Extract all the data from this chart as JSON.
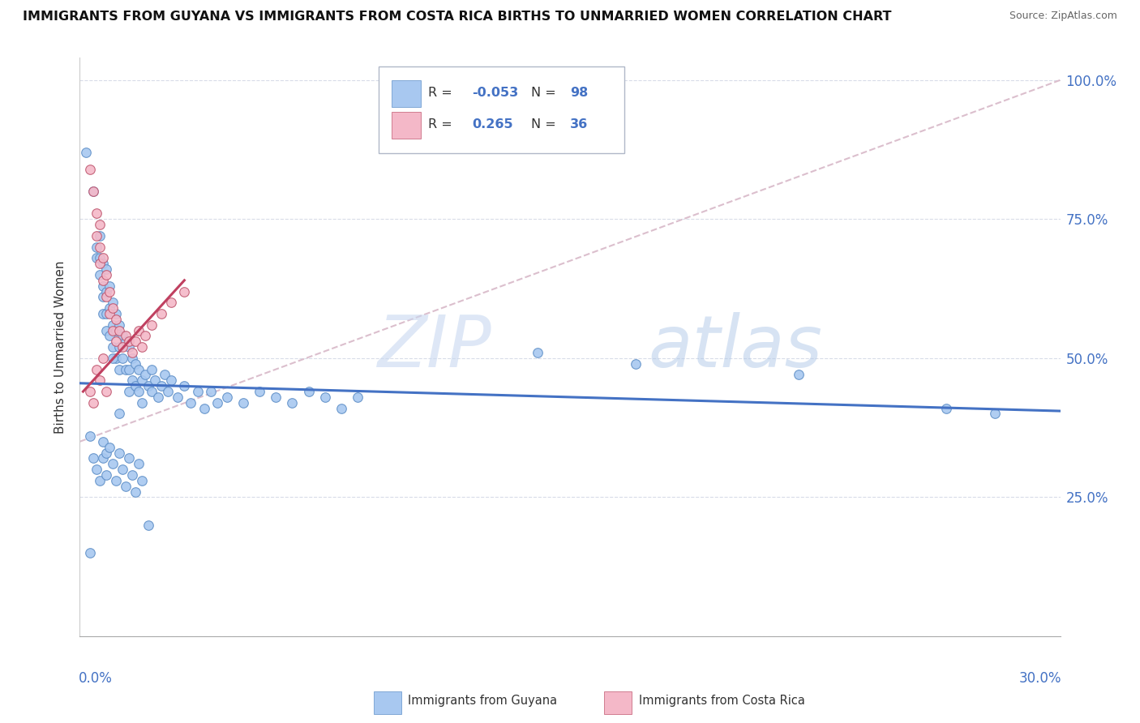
{
  "title": "IMMIGRANTS FROM GUYANA VS IMMIGRANTS FROM COSTA RICA BIRTHS TO UNMARRIED WOMEN CORRELATION CHART",
  "source": "Source: ZipAtlas.com",
  "ylabel": "Births to Unmarried Women",
  "color_guyana": "#a8c8f0",
  "color_costa_rica": "#f4b8c8",
  "trend_color_guyana": "#4472c4",
  "trend_color_costa_rica": "#c04060",
  "ref_line_color": "#d8b8c8",
  "background_color": "#ffffff",
  "xlim": [
    0.0,
    0.3
  ],
  "ylim": [
    0.0,
    1.04
  ],
  "y_ticks": [
    0.0,
    0.25,
    0.5,
    0.75,
    1.0
  ],
  "y_tick_labels": [
    "",
    "25.0%",
    "50.0%",
    "75.0%",
    "100.0%"
  ],
  "grid_color": "#d8dce8",
  "guyana_x": [
    0.002,
    0.004,
    0.005,
    0.005,
    0.006,
    0.006,
    0.006,
    0.007,
    0.007,
    0.007,
    0.007,
    0.008,
    0.008,
    0.008,
    0.008,
    0.009,
    0.009,
    0.009,
    0.01,
    0.01,
    0.01,
    0.011,
    0.011,
    0.011,
    0.012,
    0.012,
    0.012,
    0.013,
    0.013,
    0.014,
    0.014,
    0.015,
    0.015,
    0.015,
    0.016,
    0.016,
    0.017,
    0.017,
    0.018,
    0.018,
    0.019,
    0.019,
    0.02,
    0.021,
    0.022,
    0.022,
    0.023,
    0.024,
    0.025,
    0.026,
    0.027,
    0.028,
    0.03,
    0.032,
    0.034,
    0.036,
    0.038,
    0.04,
    0.042,
    0.045,
    0.05,
    0.055,
    0.06,
    0.065,
    0.07,
    0.075,
    0.08,
    0.085,
    0.003,
    0.004,
    0.005,
    0.006,
    0.007,
    0.007,
    0.008,
    0.008,
    0.009,
    0.01,
    0.011,
    0.012,
    0.013,
    0.014,
    0.015,
    0.016,
    0.017,
    0.018,
    0.019,
    0.021,
    0.003,
    0.01,
    0.012,
    0.14,
    0.17,
    0.22,
    0.265,
    0.28
  ],
  "guyana_y": [
    0.87,
    0.8,
    0.7,
    0.68,
    0.72,
    0.68,
    0.65,
    0.67,
    0.63,
    0.61,
    0.58,
    0.66,
    0.62,
    0.58,
    0.55,
    0.63,
    0.59,
    0.54,
    0.6,
    0.56,
    0.52,
    0.58,
    0.55,
    0.5,
    0.56,
    0.52,
    0.48,
    0.54,
    0.5,
    0.53,
    0.48,
    0.52,
    0.48,
    0.44,
    0.5,
    0.46,
    0.49,
    0.45,
    0.48,
    0.44,
    0.46,
    0.42,
    0.47,
    0.45,
    0.48,
    0.44,
    0.46,
    0.43,
    0.45,
    0.47,
    0.44,
    0.46,
    0.43,
    0.45,
    0.42,
    0.44,
    0.41,
    0.44,
    0.42,
    0.43,
    0.42,
    0.44,
    0.43,
    0.42,
    0.44,
    0.43,
    0.41,
    0.43,
    0.36,
    0.32,
    0.3,
    0.28,
    0.35,
    0.32,
    0.33,
    0.29,
    0.34,
    0.31,
    0.28,
    0.33,
    0.3,
    0.27,
    0.32,
    0.29,
    0.26,
    0.31,
    0.28,
    0.2,
    0.15,
    0.5,
    0.4,
    0.51,
    0.49,
    0.47,
    0.41,
    0.4
  ],
  "costa_rica_x": [
    0.003,
    0.004,
    0.005,
    0.005,
    0.006,
    0.006,
    0.006,
    0.007,
    0.007,
    0.008,
    0.008,
    0.009,
    0.009,
    0.01,
    0.01,
    0.011,
    0.011,
    0.012,
    0.013,
    0.014,
    0.015,
    0.016,
    0.017,
    0.018,
    0.019,
    0.02,
    0.022,
    0.025,
    0.028,
    0.032,
    0.003,
    0.004,
    0.005,
    0.006,
    0.007,
    0.008
  ],
  "costa_rica_y": [
    0.84,
    0.8,
    0.76,
    0.72,
    0.74,
    0.7,
    0.67,
    0.68,
    0.64,
    0.65,
    0.61,
    0.62,
    0.58,
    0.59,
    0.55,
    0.57,
    0.53,
    0.55,
    0.52,
    0.54,
    0.53,
    0.51,
    0.53,
    0.55,
    0.52,
    0.54,
    0.56,
    0.58,
    0.6,
    0.62,
    0.44,
    0.42,
    0.48,
    0.46,
    0.5,
    0.44
  ],
  "guyana_trend_x": [
    0.0,
    0.3
  ],
  "guyana_trend_y": [
    0.455,
    0.405
  ],
  "costa_rica_trend_x": [
    0.001,
    0.032
  ],
  "costa_rica_trend_y": [
    0.44,
    0.64
  ]
}
